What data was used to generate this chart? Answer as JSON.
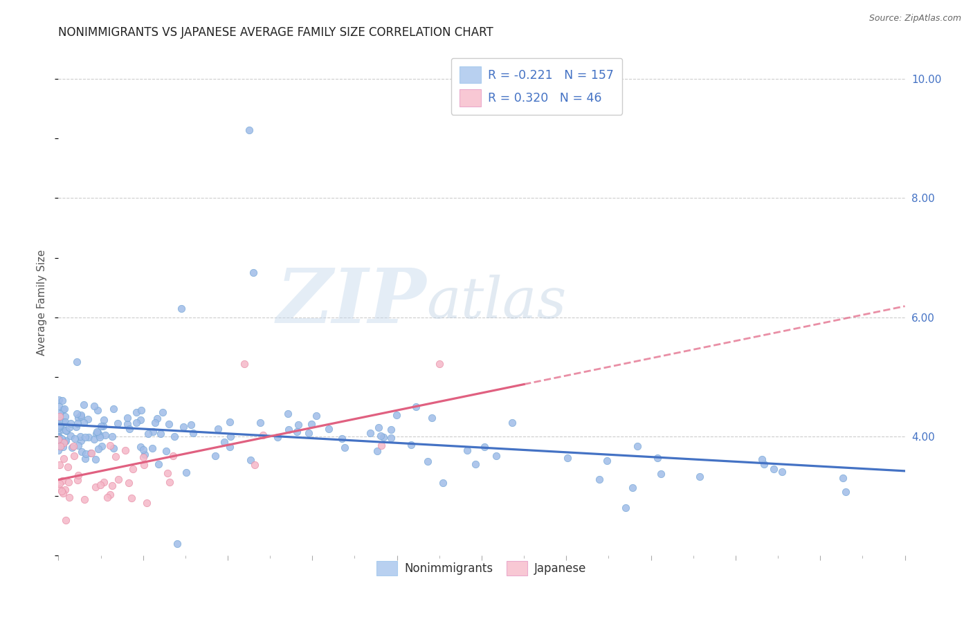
{
  "title": "NONIMMIGRANTS VS JAPANESE AVERAGE FAMILY SIZE CORRELATION CHART",
  "source_text": "Source: ZipAtlas.com",
  "ylabel": "Average Family Size",
  "xlim": [
    0.0,
    1.0
  ],
  "ylim": [
    2.0,
    10.5
  ],
  "right_yticks": [
    4.0,
    6.0,
    8.0,
    10.0
  ],
  "right_yticklabels": [
    "4.00",
    "6.00",
    "8.00",
    "10.00"
  ],
  "background_color": "#ffffff",
  "grid_color": "#cccccc",
  "ni_color": "#a0bce8",
  "ni_edge": "#7aaad8",
  "ni_trend_color": "#4472c4",
  "ni_legend_color": "#b8d0f0",
  "jp_color": "#f5b8c8",
  "jp_edge": "#e890a8",
  "jp_trend_color": "#e06080",
  "jp_legend_color": "#f8c8d4",
  "label_color": "#4472c4",
  "title_color": "#222222",
  "source_color": "#666666",
  "ni_R": "-0.221",
  "ni_N": "157",
  "jp_R": "0.320",
  "jp_N": "46",
  "ni_label": "Nonimmigrants",
  "jp_label": "Japanese"
}
